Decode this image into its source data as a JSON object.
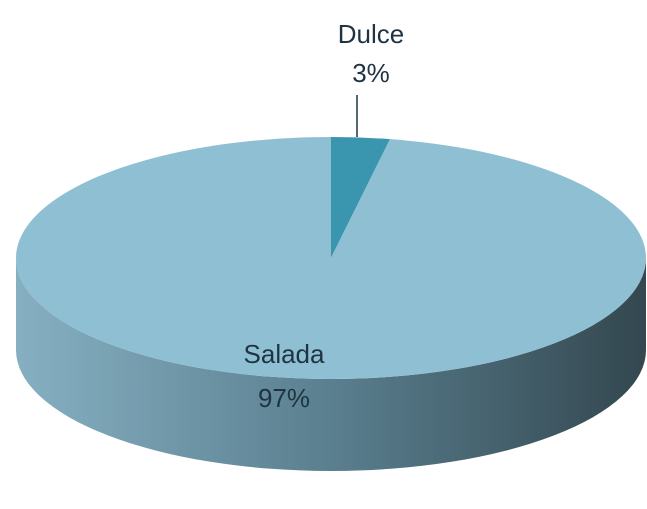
{
  "chart_data": {
    "type": "pie",
    "categories": [
      "Dulce",
      "Salada"
    ],
    "values": [
      3,
      97
    ],
    "value_labels": [
      "3%",
      "97%"
    ],
    "colors": [
      "#3a96ae",
      "#8fbfd3"
    ]
  }
}
